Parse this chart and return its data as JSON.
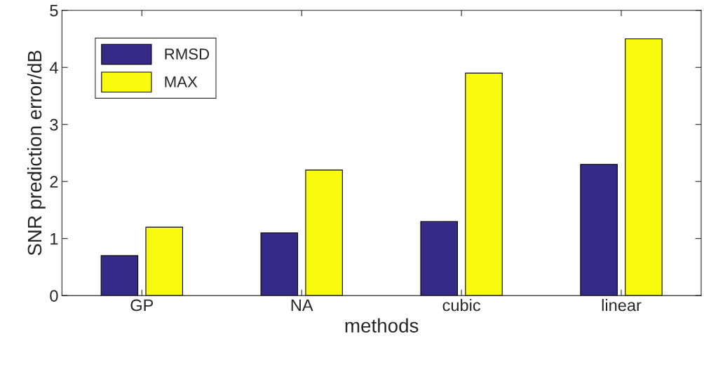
{
  "chart_data": {
    "type": "bar",
    "xlabel": "methods",
    "ylabel": "SNR prediction error/dB",
    "categories": [
      "GP",
      "NA",
      "cubic",
      "linear"
    ],
    "series": [
      {
        "name": "RMSD",
        "color": "#352a87",
        "values": [
          0.7,
          1.1,
          1.3,
          2.3
        ]
      },
      {
        "name": "MAX",
        "color": "#f9fb0e",
        "values": [
          1.2,
          2.2,
          3.9,
          4.5
        ]
      }
    ],
    "ylim": [
      0,
      5
    ],
    "yticks": [
      0,
      1,
      2,
      3,
      4,
      5
    ],
    "grid": false,
    "legend": "top left"
  }
}
